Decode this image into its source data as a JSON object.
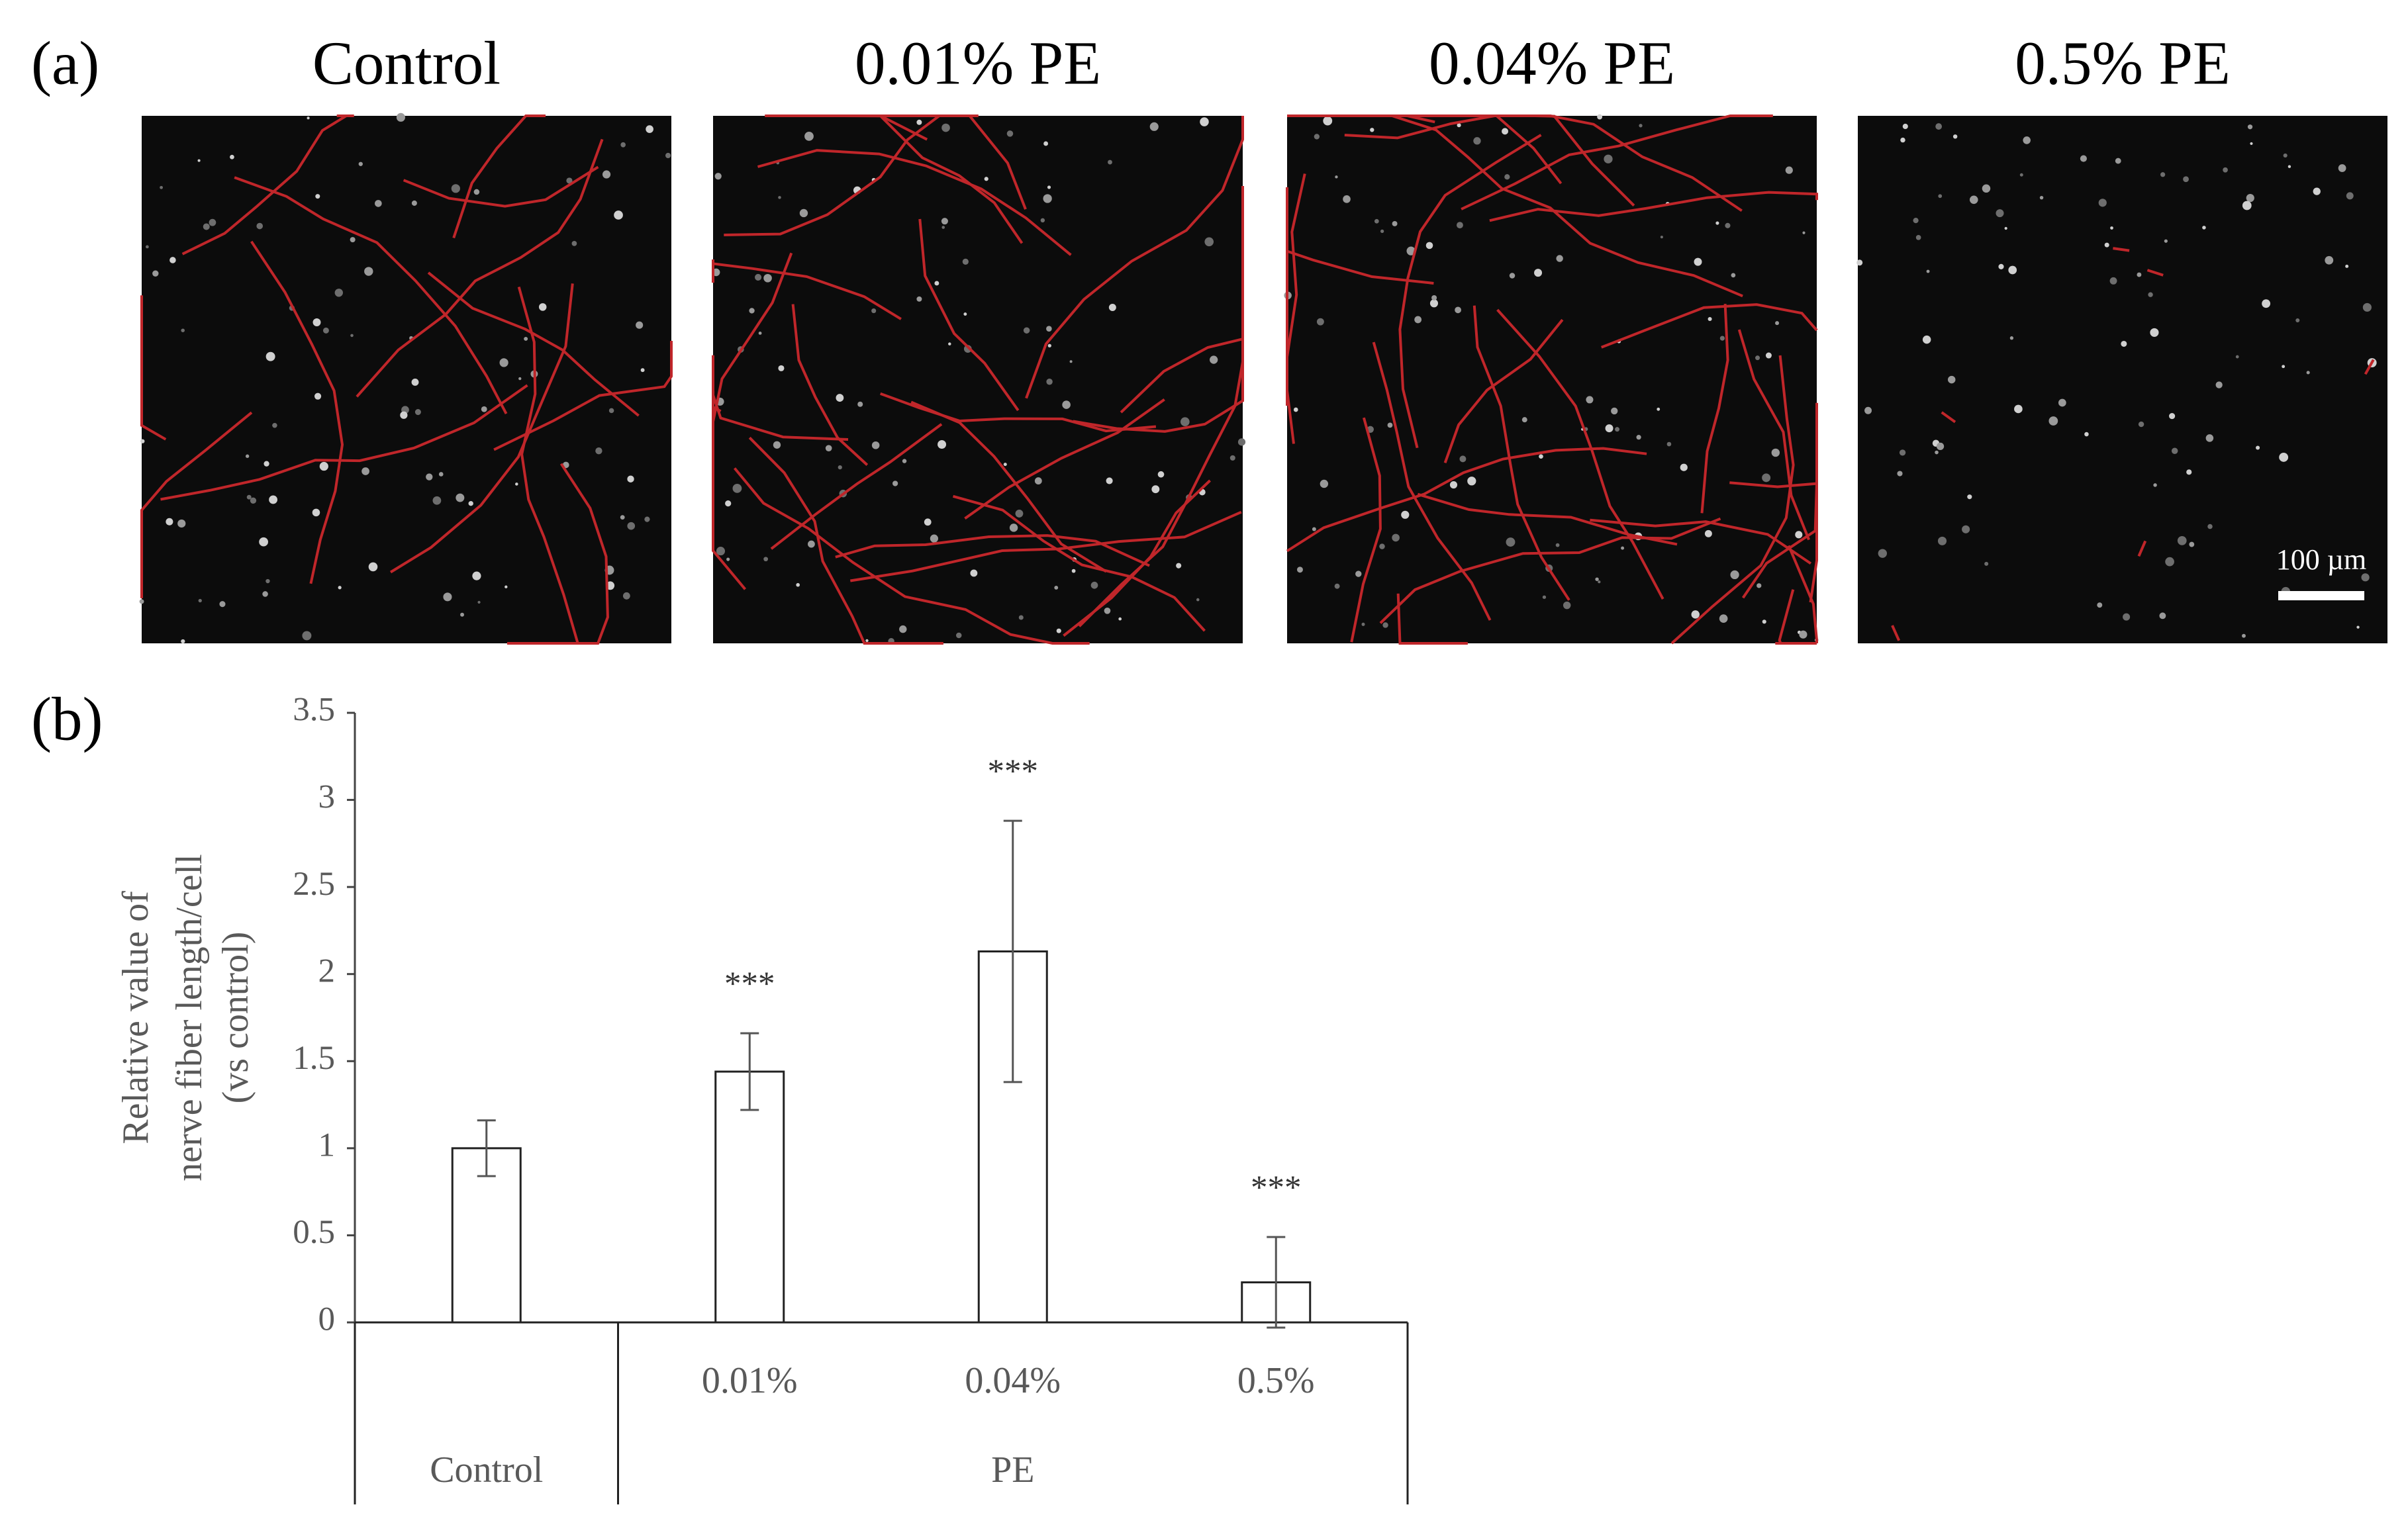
{
  "panel_a": {
    "label": "(a)",
    "titles": [
      "Control",
      "0.01% PE",
      "0.04% PE",
      "0.5% PE"
    ],
    "scale_bar": "100 µm"
  },
  "chart_data": {
    "type": "bar",
    "panel_label": "(b)",
    "y_label": [
      "Relative value of",
      "nerve fiber length/cell",
      "(vs control)"
    ],
    "categories": [
      null,
      "0.01%",
      "0.04%",
      "0.5%"
    ],
    "category_groups": [
      "Control",
      "PE",
      "PE",
      "PE"
    ],
    "values": [
      1.0,
      1.44,
      2.13,
      0.23
    ],
    "errors": [
      0.16,
      0.22,
      0.75,
      0.26
    ],
    "significance": [
      null,
      "***",
      "***",
      "***"
    ],
    "color": "#ffffff",
    "ylim": [
      0,
      3.5
    ],
    "yticks": [
      0,
      0.5,
      1,
      1.5,
      2,
      2.5,
      3,
      3.5
    ]
  }
}
